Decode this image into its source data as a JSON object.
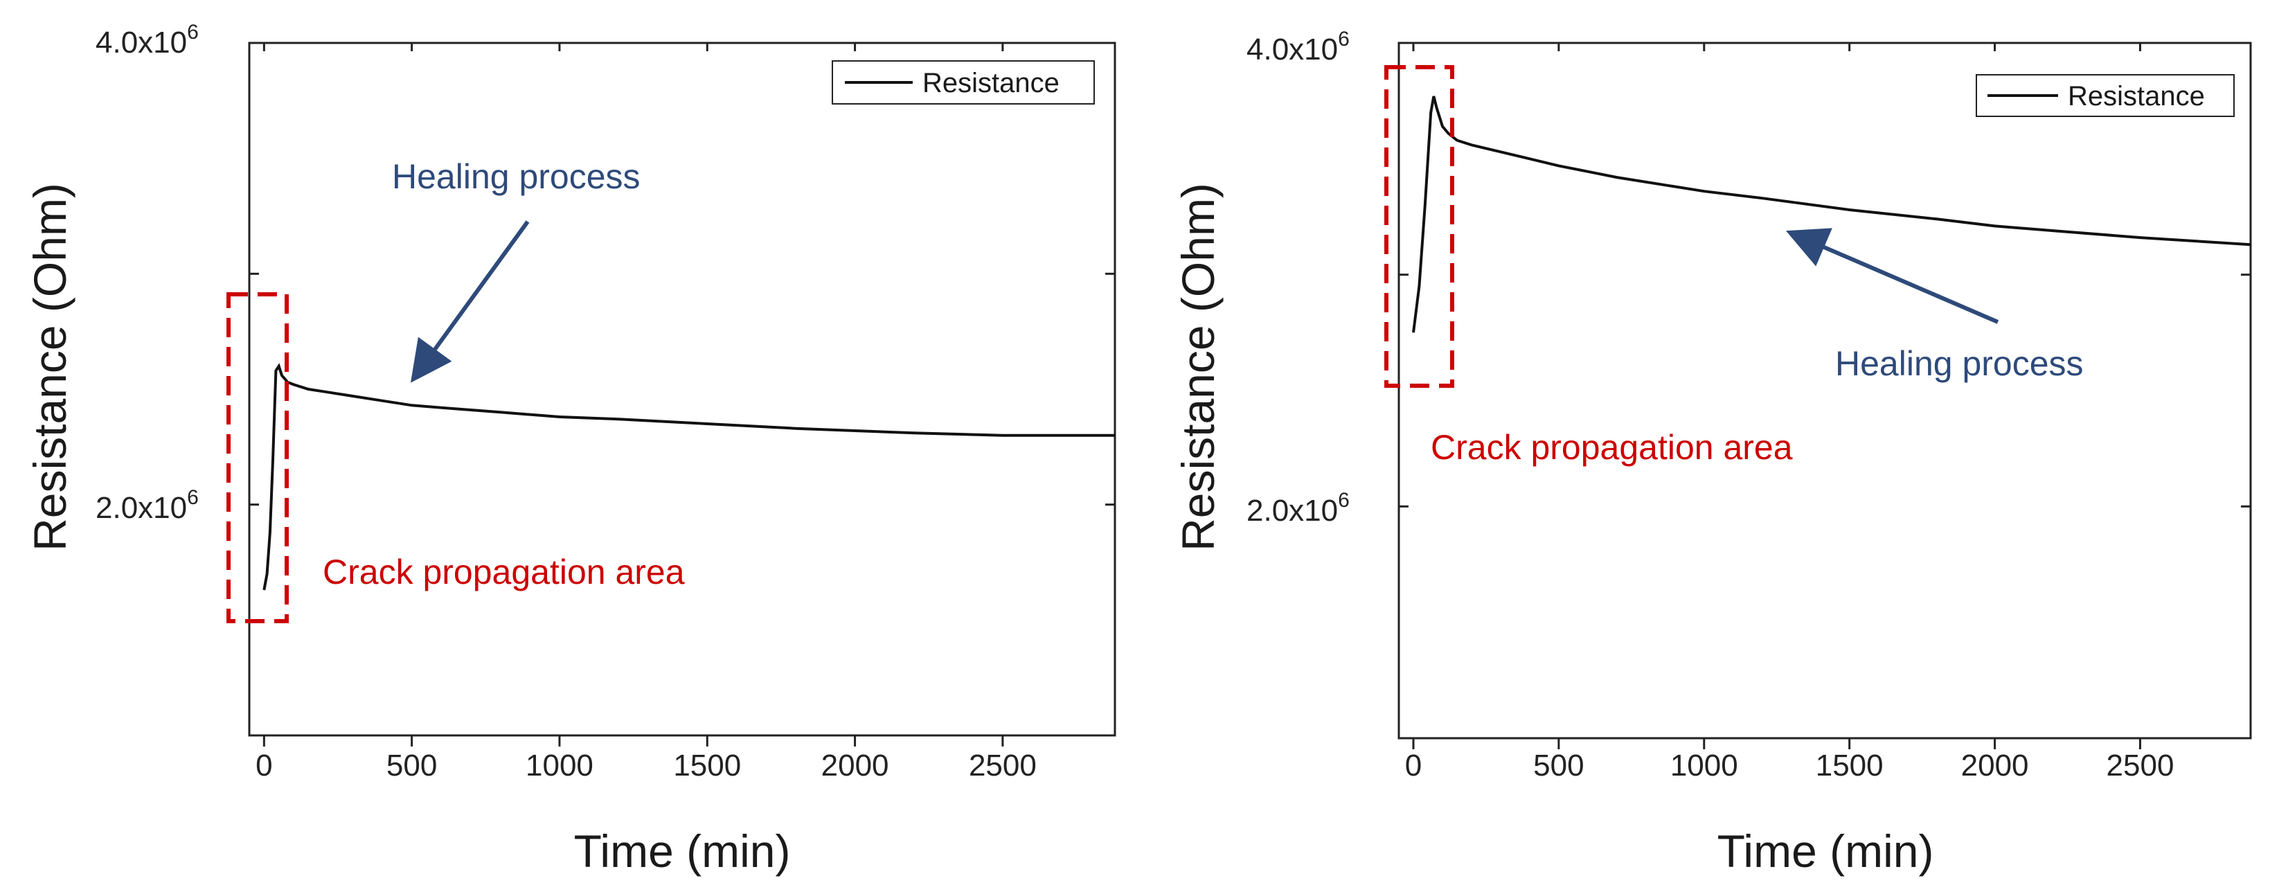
{
  "chart_data": [
    {
      "type": "line",
      "xlabel": "Time (min)",
      "ylabel": "Resistance (Ohm)",
      "xlim": [
        -50,
        2880
      ],
      "ylim": [
        1000000,
        4000000
      ],
      "xticks": [
        0,
        500,
        1000,
        1500,
        2000,
        2500
      ],
      "xtick_labels": [
        "0",
        "500",
        "1000",
        "1500",
        "2000",
        "2500"
      ],
      "yticks": [
        2000000,
        4000000
      ],
      "ytick_labels": [
        {
          "base": "2.0x10",
          "exp": "6"
        },
        {
          "base": "4.0x10",
          "exp": "6"
        }
      ],
      "legend": {
        "label": "Resistance",
        "position": "top-right"
      },
      "series": [
        {
          "name": "Resistance",
          "x": [
            0,
            10,
            20,
            30,
            40,
            50,
            60,
            80,
            100,
            150,
            200,
            300,
            400,
            500,
            600,
            800,
            1000,
            1200,
            1500,
            1800,
            2000,
            2200,
            2500,
            2880
          ],
          "y": [
            1630000,
            1700000,
            1880000,
            2200000,
            2580000,
            2600000,
            2560000,
            2530000,
            2520000,
            2500000,
            2490000,
            2470000,
            2450000,
            2430000,
            2420000,
            2400000,
            2380000,
            2370000,
            2350000,
            2330000,
            2320000,
            2310000,
            2300000,
            2300000
          ]
        }
      ],
      "annotations": [
        {
          "text": "Healing process",
          "color": "#2e4a7a",
          "arrow_to": {
            "x": 520,
            "y": 2430000
          }
        },
        {
          "text": "Crack propagation area",
          "color": "#cc0000",
          "box_x": [
            -100,
            100
          ],
          "box_y": [
            1500000,
            2900000
          ]
        }
      ]
    },
    {
      "type": "line",
      "xlabel": "Time (min)",
      "ylabel": "Resistance (Ohm)",
      "xlim": [
        -50,
        2880
      ],
      "ylim": [
        1000000,
        4000000
      ],
      "xticks": [
        0,
        500,
        1000,
        1500,
        2000,
        2500
      ],
      "xtick_labels": [
        "0",
        "500",
        "1000",
        "1500",
        "2000",
        "2500"
      ],
      "yticks": [
        2000000,
        4000000
      ],
      "ytick_labels": [
        {
          "base": "2.0x10",
          "exp": "6"
        },
        {
          "base": "4.0x10",
          "exp": "6"
        }
      ],
      "legend": {
        "label": "Resistance",
        "position": "top-right"
      },
      "series": [
        {
          "name": "Resistance",
          "x": [
            0,
            20,
            40,
            60,
            70,
            80,
            100,
            120,
            150,
            200,
            300,
            400,
            500,
            700,
            900,
            1000,
            1200,
            1500,
            1800,
            2000,
            2200,
            2500,
            2880
          ],
          "y": [
            2750000,
            2950000,
            3300000,
            3700000,
            3770000,
            3720000,
            3640000,
            3610000,
            3580000,
            3560000,
            3530000,
            3500000,
            3470000,
            3420000,
            3380000,
            3360000,
            3330000,
            3280000,
            3240000,
            3210000,
            3190000,
            3160000,
            3130000
          ]
        }
      ],
      "annotations": [
        {
          "text": "Healing process",
          "color": "#2e4a7a",
          "arrow_to": {
            "x": 1300,
            "y": 3240000
          }
        },
        {
          "text": "Crack propagation area",
          "color": "#cc0000",
          "box_x": [
            -50,
            170
          ],
          "box_y": [
            2550000,
            3930000
          ]
        }
      ]
    }
  ]
}
